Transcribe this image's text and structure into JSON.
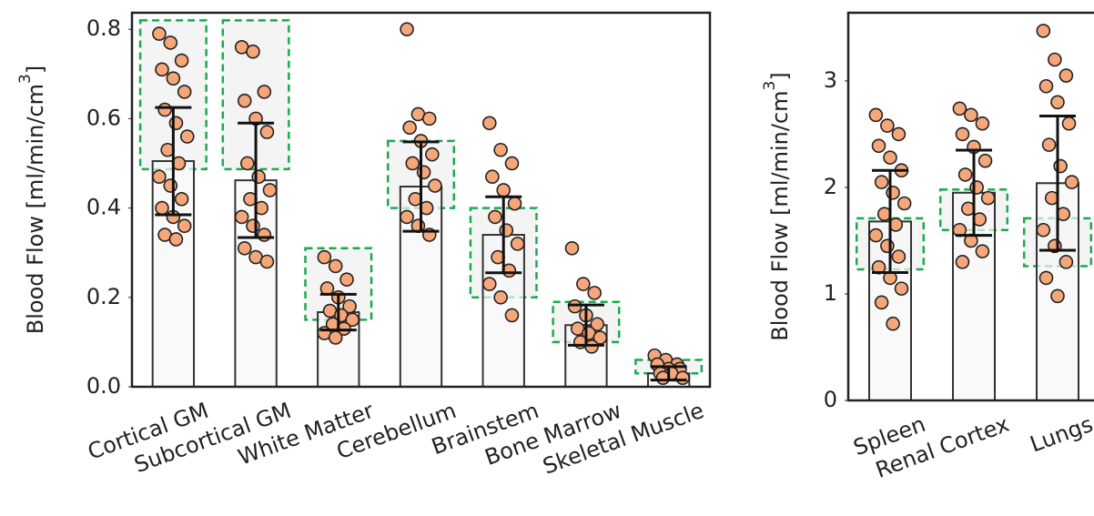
{
  "chart_data": [
    {
      "type": "bar",
      "ylabel": "Blood Flow [ml/min/cm",
      "ylabel_sup": "3",
      "ylabel_end": "]",
      "categories": [
        "Cortical GM",
        "Subcortical GM",
        "White Matter",
        "Cerebellum",
        "Brainstem",
        "Bone Marrow",
        "Skeletal Muscle"
      ],
      "values": [
        0.505,
        0.462,
        0.167,
        0.448,
        0.34,
        0.138,
        0.03
      ],
      "errors": [
        0.12,
        0.128,
        0.04,
        0.1,
        0.085,
        0.045,
        0.015
      ],
      "ref_low": [
        0.487,
        0.487,
        0.15,
        0.4,
        0.2,
        0.1,
        0.03
      ],
      "ref_high": [
        0.82,
        0.82,
        0.31,
        0.55,
        0.4,
        0.19,
        0.06
      ],
      "points": [
        [
          0.79,
          0.77,
          0.73,
          0.71,
          0.69,
          0.66,
          0.62,
          0.59,
          0.56,
          0.53,
          0.5,
          0.47,
          0.45,
          0.42,
          0.4,
          0.38,
          0.36,
          0.34,
          0.33
        ],
        [
          0.76,
          0.75,
          0.66,
          0.64,
          0.6,
          0.57,
          0.5,
          0.47,
          0.44,
          0.42,
          0.4,
          0.38,
          0.36,
          0.34,
          0.31,
          0.29,
          0.28
        ],
        [
          0.29,
          0.27,
          0.24,
          0.22,
          0.2,
          0.18,
          0.17,
          0.16,
          0.15,
          0.14,
          0.13,
          0.12,
          0.11
        ],
        [
          0.8,
          0.61,
          0.6,
          0.58,
          0.55,
          0.52,
          0.5,
          0.48,
          0.45,
          0.42,
          0.4,
          0.38,
          0.36,
          0.34
        ],
        [
          0.59,
          0.53,
          0.5,
          0.47,
          0.44,
          0.41,
          0.38,
          0.35,
          0.32,
          0.29,
          0.26,
          0.23,
          0.2,
          0.16
        ],
        [
          0.31,
          0.23,
          0.21,
          0.18,
          0.16,
          0.14,
          0.13,
          0.12,
          0.11,
          0.1,
          0.09
        ],
        [
          0.07,
          0.06,
          0.05,
          0.05,
          0.04,
          0.04,
          0.03,
          0.03,
          0.02,
          0.02
        ]
      ],
      "ylim": [
        0,
        0.837
      ],
      "yticks": [
        {
          "value": 0,
          "label": "0.0"
        },
        0.2,
        0.4,
        0.6,
        0.8
      ],
      "bar_color": "#f7f7f7",
      "point_color": "#f5a779",
      "ref_color": "#1aaa50"
    },
    {
      "type": "bar",
      "ylabel": "Blood Flow [ml/min/cm",
      "ylabel_sup": "3",
      "ylabel_end": "]",
      "categories": [
        "Spleen",
        "Renal Cortex",
        "Lungs"
      ],
      "values": [
        1.68,
        1.95,
        2.04
      ],
      "errors": [
        0.48,
        0.4,
        0.63
      ],
      "ref_low": [
        1.23,
        1.6,
        1.26
      ],
      "ref_high": [
        1.71,
        1.98,
        1.71
      ],
      "points": [
        [
          2.68,
          2.58,
          2.5,
          2.39,
          2.28,
          2.16,
          2.05,
          1.95,
          1.85,
          1.75,
          1.65,
          1.55,
          1.45,
          1.35,
          1.25,
          1.15,
          1.05,
          0.92,
          0.72
        ],
        [
          2.74,
          2.68,
          2.6,
          2.5,
          2.38,
          2.25,
          2.12,
          2.0,
          1.9,
          1.8,
          1.7,
          1.6,
          1.5,
          1.4,
          1.3
        ],
        [
          3.47,
          3.2,
          3.05,
          2.95,
          2.8,
          2.6,
          2.4,
          2.2,
          2.05,
          1.9,
          1.75,
          1.6,
          1.45,
          1.3,
          1.15,
          0.98
        ]
      ],
      "ylim": [
        0,
        3.64
      ],
      "yticks": [
        0,
        1,
        2,
        3
      ],
      "bar_color": "#f7f7f7",
      "point_color": "#f5a779",
      "ref_color": "#1aaa50"
    }
  ]
}
